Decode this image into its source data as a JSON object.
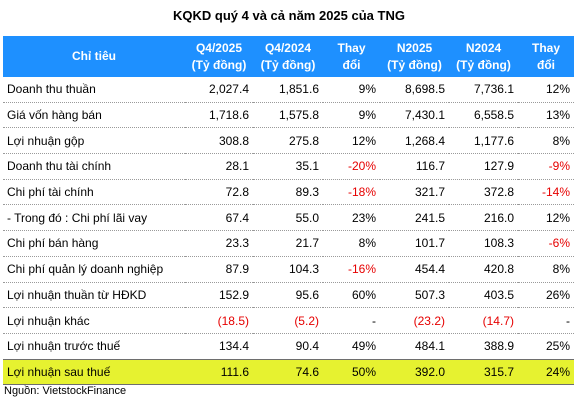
{
  "title": "KQKD quý 4 và cả năm 2025 của TNG",
  "header": {
    "label": "Chỉ tiêu",
    "cols": [
      {
        "line1": "Q4/2025",
        "line2": "(Tỷ đồng)"
      },
      {
        "line1": "Q4/2024",
        "line2": "(Tỷ đồng)"
      },
      {
        "line1": "Thay",
        "line2": "đổi"
      },
      {
        "line1": "N2025",
        "line2": "(Tỷ đồng)"
      },
      {
        "line1": "N2024",
        "line2": "(Tỷ đồng)"
      },
      {
        "line1": "Thay",
        "line2": "đổi"
      }
    ]
  },
  "rows": [
    {
      "label": "Doanh thu thuần",
      "q4_2025": "2,027.4",
      "q4_2024": "1,851.6",
      "q_change": "9%",
      "n2025": "8,698.5",
      "n2024": "7,736.1",
      "n_change": "12%"
    },
    {
      "label": "Giá vốn hàng bán",
      "q4_2025": "1,718.6",
      "q4_2024": "1,575.8",
      "q_change": "9%",
      "n2025": "7,430.1",
      "n2024": "6,558.5",
      "n_change": "13%"
    },
    {
      "label": "Lợi nhuận gộp",
      "q4_2025": "308.8",
      "q4_2024": "275.8",
      "q_change": "12%",
      "n2025": "1,268.4",
      "n2024": "1,177.6",
      "n_change": "8%"
    },
    {
      "label": "Doanh thu tài chính",
      "q4_2025": "28.1",
      "q4_2024": "35.1",
      "q_change": "-20%",
      "n2025": "116.7",
      "n2024": "127.9",
      "n_change": "-9%"
    },
    {
      "label": "Chi phí tài chính",
      "q4_2025": "72.8",
      "q4_2024": "89.3",
      "q_change": "-18%",
      "n2025": "321.7",
      "n2024": "372.8",
      "n_change": "-14%"
    },
    {
      "label": "- Trong đó : Chi phí lãi vay",
      "q4_2025": "67.4",
      "q4_2024": "55.0",
      "q_change": "23%",
      "n2025": "241.5",
      "n2024": "216.0",
      "n_change": "12%"
    },
    {
      "label": "Chi phí bán hàng",
      "q4_2025": "23.3",
      "q4_2024": "21.7",
      "q_change": "8%",
      "n2025": "101.7",
      "n2024": "108.3",
      "n_change": "-6%"
    },
    {
      "label": "Chi phí quản lý doanh nghiệp",
      "q4_2025": "87.9",
      "q4_2024": "104.3",
      "q_change": "-16%",
      "n2025": "454.4",
      "n2024": "420.8",
      "n_change": "8%"
    },
    {
      "label": "Lợi nhuận thuần từ HĐKD",
      "q4_2025": "152.9",
      "q4_2024": "95.6",
      "q_change": "60%",
      "n2025": "507.3",
      "n2024": "403.5",
      "n_change": "26%"
    },
    {
      "label": "Lợi nhuận khác",
      "q4_2025": "(18.5)",
      "q4_2024": "(5.2)",
      "q_change": "-",
      "n2025": "(23.2)",
      "n2024": "(14.7)",
      "n_change": "-"
    },
    {
      "label": "Lợi nhuận trước thuế",
      "q4_2025": "134.4",
      "q4_2024": "90.4",
      "q_change": "49%",
      "n2025": "484.1",
      "n2024": "388.9",
      "n_change": "25%"
    },
    {
      "label": "Lợi nhuận sau thuế",
      "q4_2025": "111.6",
      "q4_2024": "74.6",
      "q_change": "50%",
      "n2025": "392.0",
      "n2024": "315.7",
      "n_change": "24%"
    }
  ],
  "colors": {
    "header_bg": "#1e90ff",
    "header_text": "#ffffff",
    "negative": "#e60000",
    "highlight_row": "#e6f230"
  },
  "highlight_row_index": 11,
  "source": "Nguồn: VietstockFinance"
}
